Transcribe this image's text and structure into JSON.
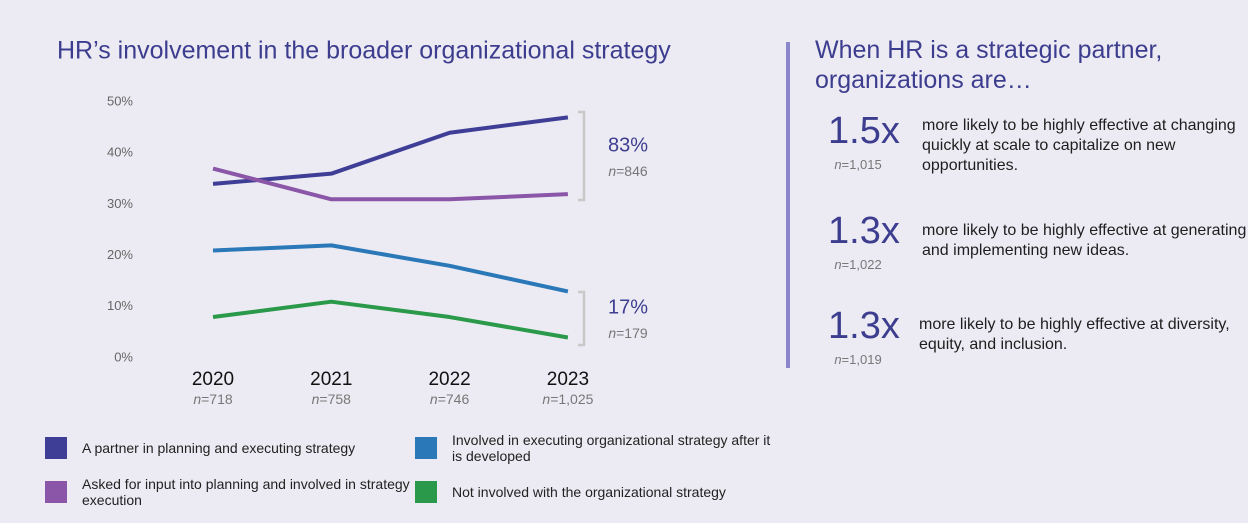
{
  "chart_data": {
    "type": "line",
    "title": "HR’s involvement in the broader organizational strategy",
    "categories": [
      "2020",
      "2021",
      "2022",
      "2023"
    ],
    "category_notes": [
      "n=718",
      "n=758",
      "n=746",
      "n=1,025"
    ],
    "series": [
      {
        "name": "A partner in planning and executing strategy",
        "color": "#3f3e96",
        "values": [
          34,
          36,
          44,
          47
        ]
      },
      {
        "name": "Asked for input into planning and involved in strategy execution",
        "color": "#8b55a8",
        "values": [
          37,
          31,
          31,
          32
        ]
      },
      {
        "name": "Involved in executing organizational strategy after it is developed",
        "color": "#2b78b8",
        "values": [
          21,
          22,
          18,
          13
        ]
      },
      {
        "name": "Not involved with the organizational strategy",
        "color": "#2a9a4a",
        "values": [
          8,
          11,
          8,
          4
        ]
      }
    ],
    "ylim": [
      0,
      50
    ],
    "yticks": [
      {
        "value": 0,
        "label": "0%"
      },
      {
        "value": 10,
        "label": "10%"
      },
      {
        "value": 20,
        "label": "20%"
      },
      {
        "value": 30,
        "label": "30%"
      },
      {
        "value": 40,
        "label": "40%"
      },
      {
        "value": 50,
        "label": "50%"
      }
    ],
    "annotations": [
      {
        "text": "83%",
        "note": "n=846"
      },
      {
        "text": "17%",
        "note": "n=179"
      }
    ]
  },
  "side_panel": {
    "title": "When HR is a strategic partner, organizations are…",
    "stats": [
      {
        "value": "1.5x",
        "note": "n=1,015",
        "text": "more likely to be highly effective at changing quickly at scale to capitalize on new opportunities."
      },
      {
        "value": "1.3x",
        "note": "n=1,022",
        "text": "more likely to be highly effective at generating and implementing new ideas."
      },
      {
        "value": "1.3x",
        "note": "n=1,019",
        "text": "more likely to be highly effective at diversity, equity, and inclusion."
      }
    ]
  }
}
